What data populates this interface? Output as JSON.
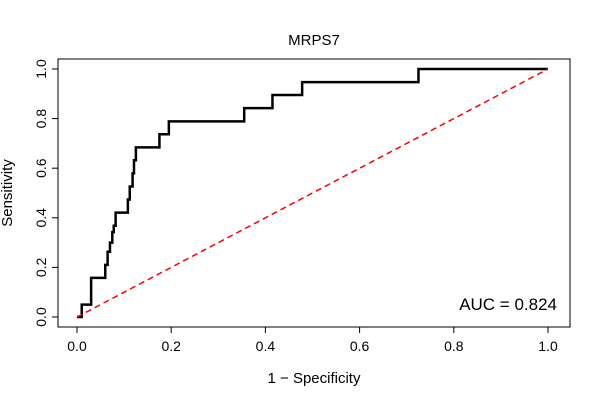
{
  "chart_data": {
    "type": "line",
    "title": "MRPS7",
    "xlabel": "1 − Specificity",
    "ylabel": "Sensitivity",
    "xlim": [
      0.0,
      1.0
    ],
    "ylim": [
      0.0,
      1.0
    ],
    "x_ticks": [
      "0.0",
      "0.2",
      "0.4",
      "0.6",
      "0.8",
      "1.0"
    ],
    "y_ticks": [
      "0.0",
      "0.2",
      "0.4",
      "0.6",
      "0.8",
      "1.0"
    ],
    "grid": false,
    "annotation": "AUC = 0.824",
    "series": [
      {
        "kind": "roc-curve",
        "color": "#000000",
        "x": [
          0.0,
          0.0,
          0.01,
          0.01,
          0.03,
          0.03,
          0.06,
          0.06,
          0.065,
          0.065,
          0.07,
          0.07,
          0.075,
          0.075,
          0.078,
          0.078,
          0.082,
          0.082,
          0.092,
          0.092,
          0.108,
          0.108,
          0.112,
          0.112,
          0.118,
          0.118,
          0.121,
          0.121,
          0.125,
          0.125,
          0.175,
          0.175,
          0.195,
          0.195,
          0.355,
          0.355,
          0.415,
          0.415,
          0.478,
          0.478,
          0.725,
          0.725,
          1.0
        ],
        "y": [
          0.0,
          0.0,
          0.0,
          0.05,
          0.05,
          0.158,
          0.158,
          0.21,
          0.21,
          0.263,
          0.263,
          0.3,
          0.3,
          0.342,
          0.342,
          0.368,
          0.368,
          0.421,
          0.421,
          0.421,
          0.421,
          0.474,
          0.474,
          0.526,
          0.526,
          0.579,
          0.579,
          0.632,
          0.632,
          0.684,
          0.684,
          0.737,
          0.737,
          0.789,
          0.789,
          0.842,
          0.842,
          0.895,
          0.895,
          0.947,
          0.947,
          1.0,
          1.0
        ]
      },
      {
        "kind": "reference-diagonal",
        "color": "#ff0000",
        "x": [
          0.0,
          1.0
        ],
        "y": [
          0.0,
          1.0
        ]
      }
    ]
  }
}
